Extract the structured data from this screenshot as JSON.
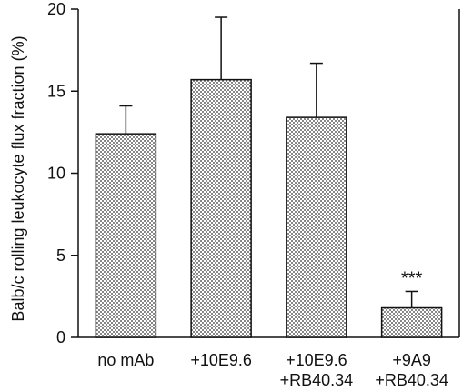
{
  "chart_data": {
    "type": "bar",
    "ylabel": "Balb/c rolling leukocyte flux fraction (%)",
    "ylim": [
      0,
      20
    ],
    "yticks": [
      0,
      5,
      10,
      15,
      20
    ],
    "categories": [
      [
        "no mAb"
      ],
      [
        "+10E9.6"
      ],
      [
        "+10E9.6",
        "+RB40.34"
      ],
      [
        "+9A9",
        "+RB40.34"
      ]
    ],
    "values": [
      12.4,
      15.7,
      13.4,
      1.8
    ],
    "errors": [
      1.7,
      3.8,
      3.3,
      1.0
    ],
    "annotations": [
      {
        "category_index": 3,
        "text": "***"
      }
    ],
    "bar_fill": "stippled gray",
    "grid": false,
    "legend": "none"
  }
}
